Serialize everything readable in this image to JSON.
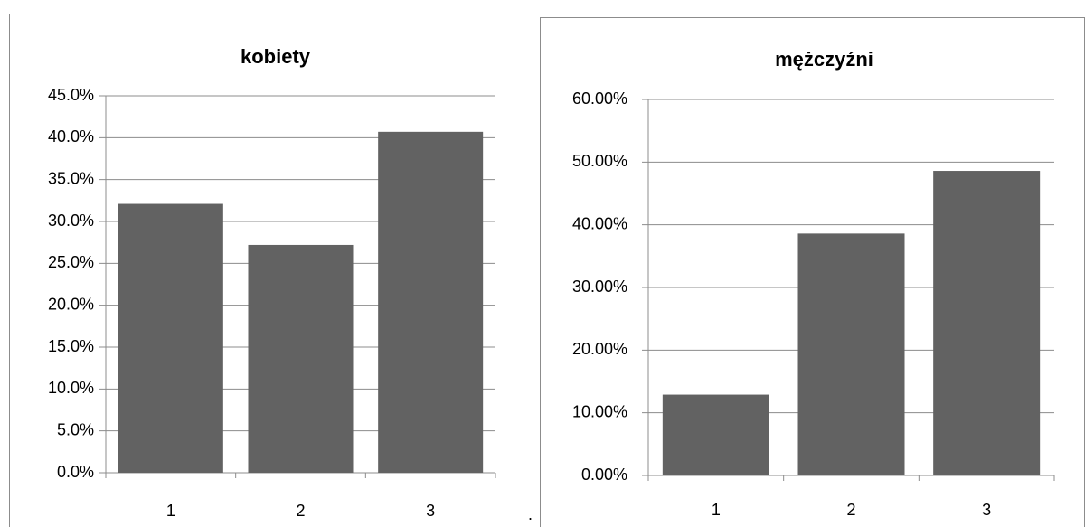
{
  "chart_data": [
    {
      "type": "bar",
      "title": "kobiety",
      "categories": [
        "1",
        "2",
        "3"
      ],
      "series": [
        {
          "values": [
            32.1,
            27.2,
            40.7
          ]
        }
      ],
      "ylim": [
        0,
        45
      ],
      "yticks": [
        "0.0%",
        "5.0%",
        "10.0%",
        "15.0%",
        "20.0%",
        "25.0%",
        "30.0%",
        "35.0%",
        "40.0%",
        "45.0%"
      ],
      "ytick_values": [
        0,
        5,
        10,
        15,
        20,
        25,
        30,
        35,
        40,
        45
      ],
      "grid": true,
      "bar_color": "#626262"
    },
    {
      "type": "bar",
      "title": "mężczyźni",
      "categories": [
        "1",
        "2",
        "3"
      ],
      "series": [
        {
          "values": [
            12.9,
            38.6,
            48.6
          ]
        }
      ],
      "ylim": [
        0,
        60
      ],
      "yticks": [
        "0.00%",
        "10.00%",
        "20.00%",
        "30.00%",
        "40.00%",
        "50.00%",
        "60.00%"
      ],
      "ytick_values": [
        0,
        10,
        20,
        30,
        40,
        50,
        60
      ],
      "grid": true,
      "bar_color": "#626262"
    }
  ],
  "separator_text": "."
}
